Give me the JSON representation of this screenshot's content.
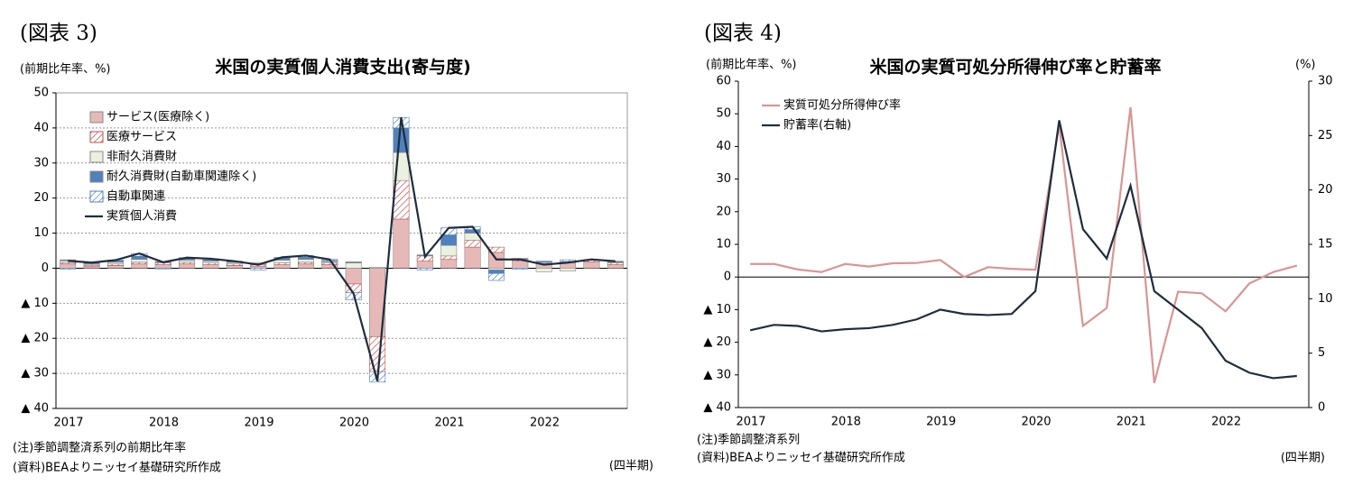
{
  "chart_data": [
    {
      "type": "bar",
      "figure_label": "(図表 3)",
      "title": "米国の実質個人消費支出(寄与度)",
      "y_unit": "(前期比年率、%)",
      "x_unit": "(四半期)",
      "notes": [
        "(注)季節調整済系列の前期比年率",
        "(資料)BEAよりニッセイ基礎研究所作成"
      ],
      "categories": [
        "2017",
        null,
        null,
        null,
        "2018",
        null,
        null,
        null,
        "2019",
        null,
        null,
        null,
        "2020",
        null,
        null,
        null,
        "2021",
        null,
        null,
        null,
        "2022",
        null,
        null,
        null
      ],
      "series": [
        {
          "name": "サービス(医療除く)",
          "color": "#e6b9b8",
          "values": [
            1.2,
            0.6,
            0.8,
            1.2,
            1.0,
            1.2,
            1.0,
            0.8,
            0.6,
            1.0,
            1.2,
            1.0,
            -4.5,
            -19.5,
            14,
            2.0,
            2.5,
            6.0,
            4.5,
            2.0,
            1.3,
            1.5,
            1.8,
            1.0
          ]
        },
        {
          "name": "医療サービス",
          "color": "#c0504d",
          "pattern": "hatch",
          "values": [
            0.4,
            0.3,
            0.4,
            0.5,
            0.5,
            0.5,
            0.5,
            0.4,
            0.4,
            0.5,
            0.5,
            0.5,
            -2.5,
            -10,
            11,
            1.5,
            1,
            2,
            1.5,
            0.5,
            0.3,
            0.4,
            0.5,
            0.5
          ]
        },
        {
          "name": "非耐久消費財",
          "color": "#ebf1de",
          "values": [
            0.5,
            0.3,
            0.5,
            0.8,
            0.2,
            0.6,
            0.5,
            0.4,
            0.3,
            0.8,
            0.8,
            0.4,
            1.5,
            0.3,
            8,
            0,
            3,
            2,
            -0.5,
            0,
            -1,
            -0.8,
            0,
            0.2
          ]
        },
        {
          "name": "耐久消費財(自動車関連除く)",
          "color": "#4f81bd",
          "values": [
            0.3,
            0.3,
            0.4,
            0.9,
            0.2,
            0.5,
            0.4,
            0.3,
            0.2,
            0.6,
            0.6,
            0.3,
            0.3,
            0,
            7,
            0.3,
            3,
            1,
            -1,
            0.3,
            0.3,
            0,
            0.2,
            0.3
          ]
        },
        {
          "name": "自動車関連",
          "color": "#4f81bd",
          "pattern": "hatch",
          "values": [
            -0.3,
            0.1,
            0.2,
            0.8,
            -0.2,
            0.2,
            0.3,
            0.1,
            -0.5,
            0.2,
            0.5,
            0.3,
            -2,
            -3,
            3,
            -0.5,
            2,
            0.8,
            -2,
            -0.3,
            0.1,
            0.5,
            0,
            0
          ]
        },
        {
          "name": "実質個人消費",
          "color": "#1f2d3d",
          "type": "line",
          "values": [
            2.1,
            1.6,
            2.3,
            4.2,
            1.7,
            3.0,
            2.7,
            2.0,
            1.0,
            3.1,
            3.6,
            2.5,
            -7.2,
            -32.2,
            43,
            3.3,
            11.5,
            11.8,
            2.5,
            2.5,
            1.0,
            1.6,
            2.5,
            2.0
          ]
        }
      ],
      "ylim": [
        -40,
        50
      ],
      "yticks": [
        {
          "value": -40,
          "label": "▲ 40"
        },
        {
          "value": -30,
          "label": "▲ 30"
        },
        {
          "value": -20,
          "label": "▲ 20"
        },
        {
          "value": -10,
          "label": "▲ 10"
        },
        0,
        10,
        20,
        30,
        40,
        50
      ],
      "grid": true,
      "legend": "upper left"
    },
    {
      "type": "line",
      "figure_label": "(図表 4)",
      "title": "米国の実質可処分所得伸び率と貯蓄率",
      "y_unit": "(前期比年率、%)",
      "y2_unit": "(%)",
      "x_unit": "(四半期)",
      "notes": [
        "(注)季節調整済系列",
        "(資料)BEAよりニッセイ基礎研究所作成"
      ],
      "categories": [
        "2017",
        null,
        null,
        null,
        "2018",
        null,
        null,
        null,
        "2019",
        null,
        null,
        null,
        "2020",
        null,
        null,
        null,
        "2021",
        null,
        null,
        null,
        "2022",
        null,
        null,
        null
      ],
      "series": [
        {
          "name": "実質可処分所得伸び率",
          "color": "#d99594",
          "values": [
            4.0,
            4.0,
            2.3,
            1.5,
            4.0,
            3.2,
            4.2,
            4.3,
            5.2,
            0,
            3.0,
            2.5,
            2.2,
            46.5,
            -15,
            -9.5,
            52,
            -32.5,
            -4.5,
            -5,
            -10.5,
            -2,
            1.5,
            3.5
          ]
        },
        {
          "name": "貯蓄率(右軸)",
          "color": "#1f2d3d",
          "axis": "y2",
          "values": [
            7.1,
            7.6,
            7.5,
            7.0,
            7.2,
            7.3,
            7.6,
            8.1,
            9.0,
            8.6,
            8.5,
            8.6,
            10.7,
            26.4,
            16.4,
            13.7,
            20.4,
            10.7,
            9.0,
            7.3,
            4.3,
            3.2,
            2.7,
            2.9
          ]
        }
      ],
      "ylim": [
        -40,
        60
      ],
      "yticks": [
        {
          "value": -40,
          "label": "▲ 40"
        },
        {
          "value": -30,
          "label": "▲ 30"
        },
        {
          "value": -20,
          "label": "▲ 20"
        },
        {
          "value": -10,
          "label": "▲ 10"
        },
        0,
        10,
        20,
        30,
        40,
        50,
        60
      ],
      "y2lim": [
        0,
        30
      ],
      "y2ticks": [
        0,
        5,
        10,
        15,
        20,
        25,
        30
      ],
      "grid": false,
      "legend": "upper left"
    }
  ]
}
